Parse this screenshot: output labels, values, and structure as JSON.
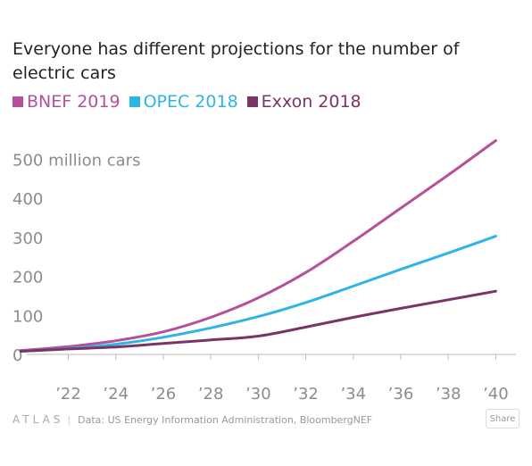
{
  "chart_data": {
    "type": "line",
    "title": "Everyone has different projections for the number of electric cars",
    "x": [
      2020,
      2022,
      2024,
      2026,
      2028,
      2030,
      2032,
      2034,
      2036,
      2038,
      2040
    ],
    "x_tick_values": [
      2022,
      2024,
      2026,
      2028,
      2030,
      2032,
      2034,
      2036,
      2038,
      2040
    ],
    "x_tick_labels": [
      "’22",
      "’24",
      "’26",
      "’28",
      "’30",
      "’32",
      "’34",
      "’36",
      "’38",
      "’40"
    ],
    "y_tick_values": [
      0,
      100,
      200,
      300,
      400,
      500
    ],
    "y_tick_labels": [
      "0",
      "100",
      "200",
      "300",
      "400",
      "500 million cars"
    ],
    "xlim": [
      2019.5,
      2041
    ],
    "ylim": [
      0,
      560
    ],
    "grid": false,
    "legend_position": "top-left",
    "series": [
      {
        "name": "BNEF 2019",
        "color": "#b5519b",
        "values": [
          10,
          20,
          35,
          58,
          95,
          145,
          210,
          290,
          375,
          460,
          548
        ]
      },
      {
        "name": "OPEC 2018",
        "color": "#2fb4e7",
        "values": [
          8,
          15,
          26,
          44,
          68,
          97,
          133,
          175,
          218,
          260,
          303
        ]
      },
      {
        "name": "Exxon 2018",
        "color": "#7a3566",
        "values": [
          8,
          14,
          19,
          28,
          37,
          47,
          70,
          95,
          118,
          140,
          162
        ]
      }
    ]
  },
  "footer": {
    "logo": "ATLAS",
    "source": "Data:  US Energy Information Administration, BloombergNEF",
    "share_label": "Share"
  }
}
